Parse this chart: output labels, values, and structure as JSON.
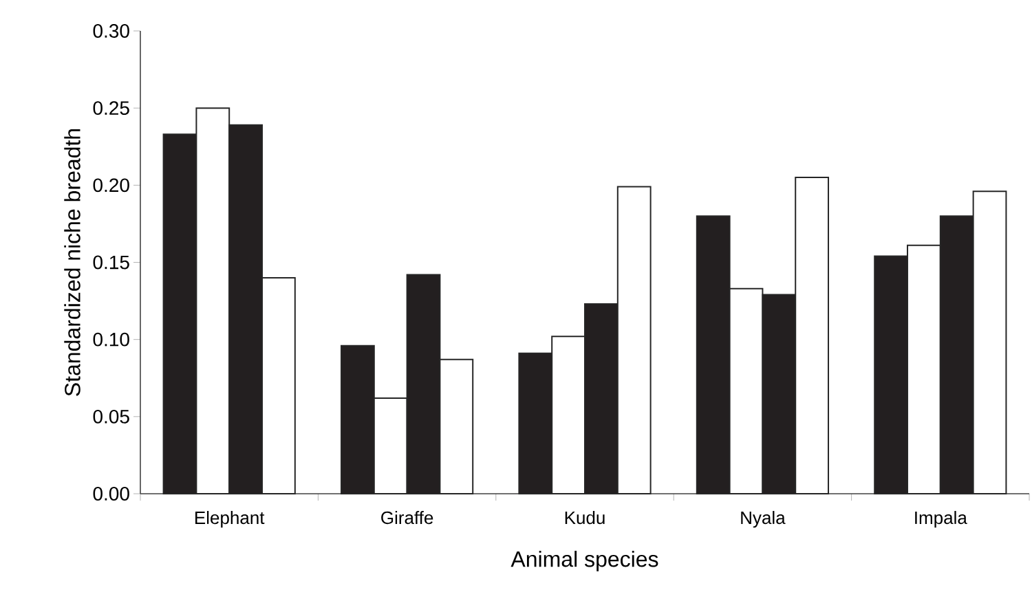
{
  "chart_data": {
    "type": "bar",
    "xlabel": "Animal species",
    "ylabel": "Standardized niche breadth",
    "categories": [
      "Elephant",
      "Giraffe",
      "Kudu",
      "Nyala",
      "Impala"
    ],
    "series": [
      {
        "color": "#231f20",
        "values": [
          0.233,
          0.096,
          0.091,
          0.18,
          0.154
        ]
      },
      {
        "color": "#ffffff",
        "values": [
          0.25,
          0.062,
          0.102,
          0.133,
          0.161
        ]
      },
      {
        "color": "#231f20",
        "values": [
          0.239,
          0.142,
          0.123,
          0.129,
          0.18
        ]
      },
      {
        "color": "#ffffff",
        "values": [
          0.14,
          0.087,
          0.199,
          0.205,
          0.196
        ]
      }
    ],
    "ylim": [
      0,
      0.3
    ],
    "yticks": [
      {
        "value": 0,
        "label": "0.00"
      },
      {
        "value": 0.05,
        "label": "0.05"
      },
      {
        "value": 0.1,
        "label": "0.10"
      },
      {
        "value": 0.15,
        "label": "0.15"
      },
      {
        "value": 0.2,
        "label": "0.20"
      },
      {
        "value": 0.25,
        "label": "0.25"
      },
      {
        "value": 0.3,
        "label": "0.30"
      }
    ],
    "grid": false
  }
}
